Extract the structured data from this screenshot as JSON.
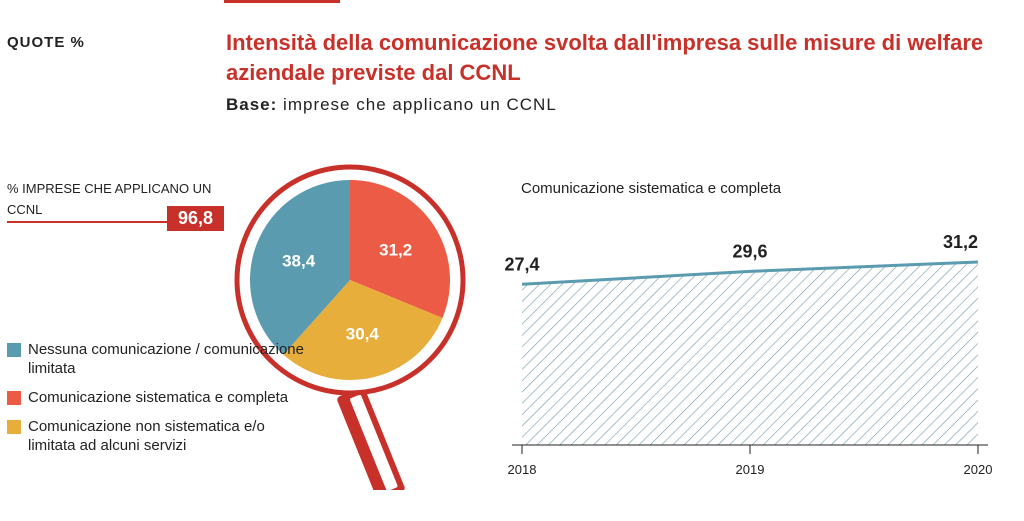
{
  "header": {
    "section_label": "QUOTE %",
    "title": "Intensità della comunicazione svolta dall'impresa sulle misure di welfare aziendale previste dal CCNL",
    "subtitle_lead": "Base:",
    "subtitle_rest": "imprese che applicano un CCNL"
  },
  "kpi": {
    "label": "% IMPRESE CHE APPLICANO UN CCNL",
    "value": "96,8"
  },
  "colors": {
    "accent_red": "#c8312a",
    "blue": "#5b9bb0",
    "orange_red": "#ec5b45",
    "yellow": "#e8ae3c",
    "hatch": "#6c9cab"
  },
  "chart_data": [
    {
      "type": "pie",
      "categories": [
        "Nessuna comunicazione / comunicazione limitata",
        "Comunicazione sistematica e completa",
        "Comunicazione non sistematica e/o limitata ad alcuni servizi"
      ],
      "values": [
        38.4,
        31.2,
        30.4
      ],
      "value_labels": [
        "38,4",
        "31,2",
        "30,4"
      ],
      "colors": [
        "#5b9bb0",
        "#ec5b45",
        "#e8ae3c"
      ],
      "legend": [
        {
          "label": "Nessuna comunicazione / comunicazione limitata",
          "color": "#5b9bb0"
        },
        {
          "label": "Comunicazione sistematica e completa",
          "color": "#ec5b45"
        },
        {
          "label": "Comunicazione non sistematica e/o limitata ad alcuni servizi",
          "color": "#e8ae3c"
        }
      ],
      "legend_position": "bottom-left"
    },
    {
      "type": "area",
      "title": "Comunicazione sistematica e completa",
      "x": [
        "2018",
        "2019",
        "2020"
      ],
      "values": [
        27.4,
        29.6,
        31.2
      ],
      "value_labels": [
        "27,4",
        "29,6",
        "31,2"
      ],
      "ylim": [
        0,
        31.2
      ],
      "fill": "hatched",
      "grid": false
    }
  ]
}
